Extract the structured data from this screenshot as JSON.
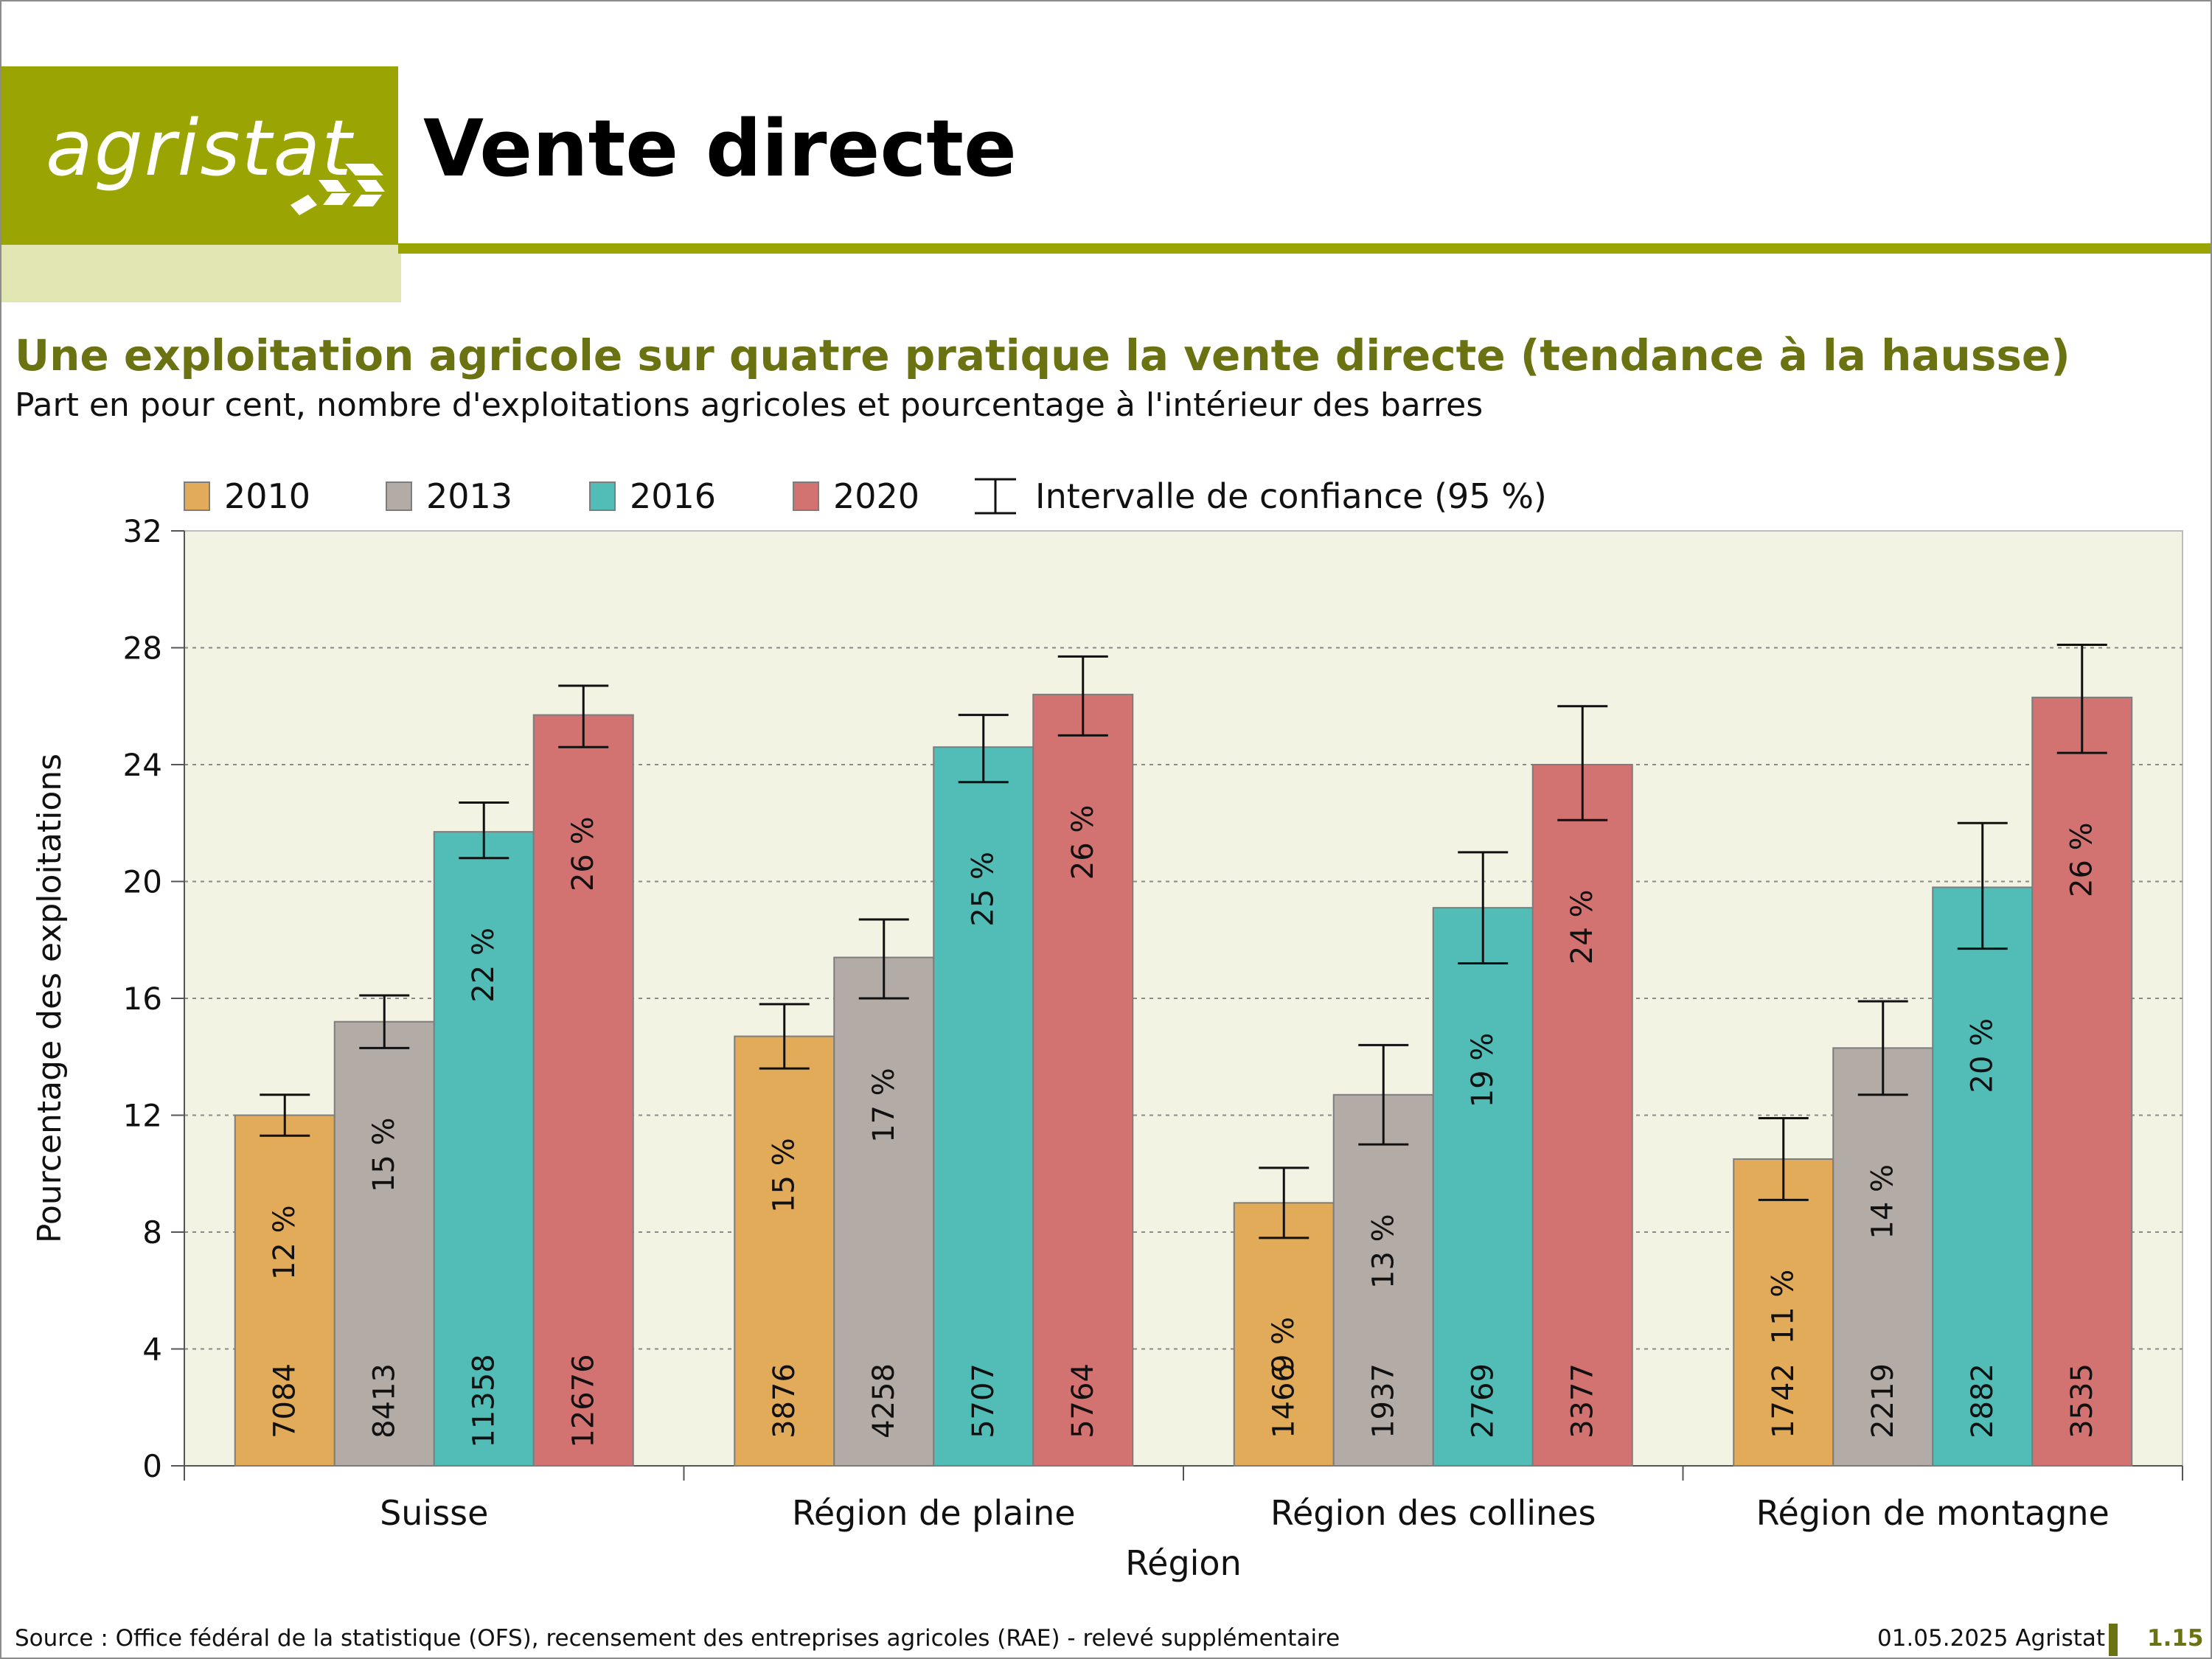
{
  "header": {
    "logo_text": "agristat",
    "title": "Vente directe"
  },
  "subtitle": "Une exploitation agricole sur quatre pratique la vente directe (tendance à la hausse)",
  "description": "Part en pour cent, nombre d'exploitations agricoles et pourcentage à l'intérieur des barres",
  "footer": {
    "source": "Source : Office fédéral de la statistique (OFS), recensement des entreprises agricoles (RAE) - relevé supplémentaire",
    "date": "01.05.2025 Agristat",
    "page": "1.15"
  },
  "colors": {
    "accent": "#9aa504",
    "title_green": "#6b7211",
    "plot_bg": "#f3f3e4",
    "2010": "#e2ab5a",
    "2013": "#b3aba6",
    "2016": "#52bdb6",
    "2020": "#d27371"
  },
  "chart_data": {
    "type": "bar",
    "xlabel": "Région",
    "ylabel": "Pourcentage des exploitations",
    "ylim": [
      0,
      32
    ],
    "yticks": [
      0,
      4,
      8,
      12,
      16,
      20,
      24,
      28,
      32
    ],
    "grid": true,
    "legend_position": "top",
    "categories": [
      "Suisse",
      "Région de plaine",
      "Région des collines",
      "Région de montagne"
    ],
    "ci_legend_label": "Intervalle de confiance (95 %)",
    "series": [
      {
        "name": "2010",
        "color": "#e2ab5a",
        "values": [
          12.0,
          14.7,
          9.0,
          10.5
        ],
        "ci_low": [
          11.3,
          13.6,
          7.8,
          9.1
        ],
        "ci_high": [
          12.7,
          15.8,
          10.2,
          11.9
        ],
        "pct_labels": [
          "12 %",
          "15 %",
          "9 %",
          "11 %"
        ],
        "counts": [
          "7084",
          "3876",
          "1466",
          "1742"
        ]
      },
      {
        "name": "2013",
        "color": "#b3aba6",
        "values": [
          15.2,
          17.4,
          12.7,
          14.3
        ],
        "ci_low": [
          14.3,
          16.0,
          11.0,
          12.7
        ],
        "ci_high": [
          16.1,
          18.7,
          14.4,
          15.9
        ],
        "pct_labels": [
          "15 %",
          "17 %",
          "13 %",
          "14 %"
        ],
        "counts": [
          "8413",
          "4258",
          "1937",
          "2219"
        ]
      },
      {
        "name": "2016",
        "color": "#52bdb6",
        "values": [
          21.7,
          24.6,
          19.1,
          19.8
        ],
        "ci_low": [
          20.8,
          23.4,
          17.2,
          17.7
        ],
        "ci_high": [
          22.7,
          25.7,
          21.0,
          22.0
        ],
        "pct_labels": [
          "22 %",
          "25 %",
          "19 %",
          "20 %"
        ],
        "counts": [
          "11358",
          "5707",
          "2769",
          "2882"
        ]
      },
      {
        "name": "2020",
        "color": "#d27371",
        "values": [
          25.7,
          26.4,
          24.0,
          26.3
        ],
        "ci_low": [
          24.6,
          25.0,
          22.1,
          24.4
        ],
        "ci_high": [
          26.7,
          27.7,
          26.0,
          28.1
        ],
        "pct_labels": [
          "26 %",
          "26 %",
          "24 %",
          "26 %"
        ],
        "counts": [
          "12676",
          "5764",
          "3377",
          "3535"
        ]
      }
    ]
  }
}
